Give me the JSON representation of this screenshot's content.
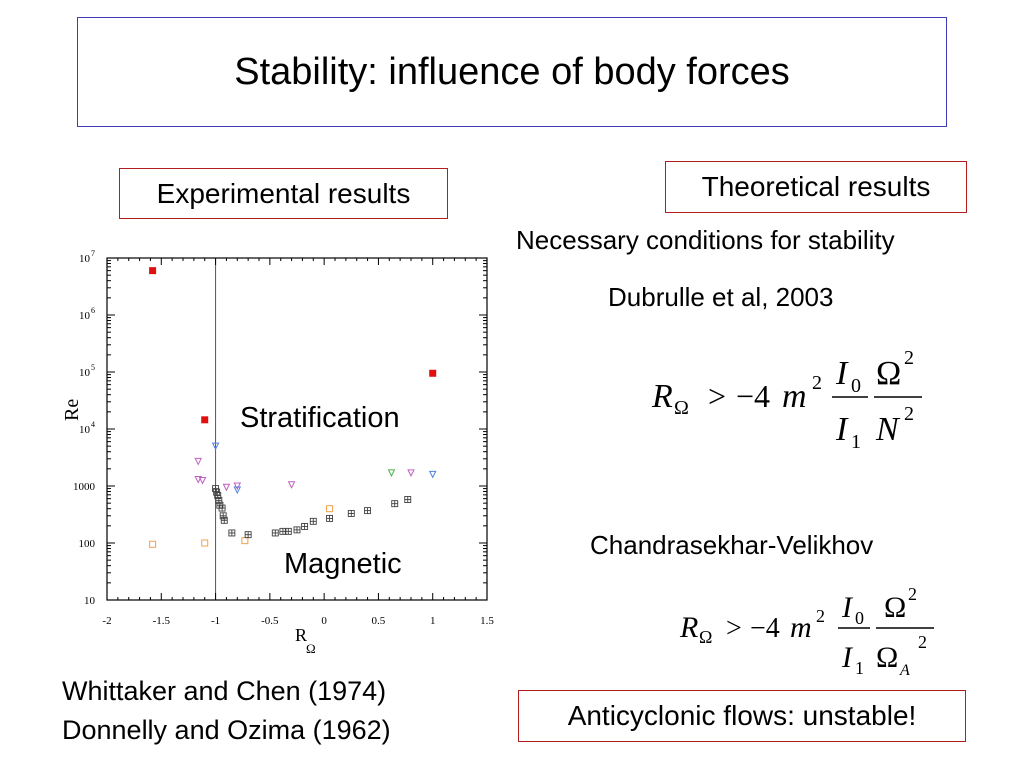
{
  "slide": {
    "title": "Stability: influence of body forces",
    "experimental_label": "Experimental results",
    "theoretical_label": "Theoretical results",
    "necessary_conditions": "Necessary conditions for stability",
    "dubrulle": "Dubrulle et al, 2003",
    "chandrasekhar": "Chandrasekhar-Velikhov",
    "anticyclonic": "Anticyclonic flows: unstable!",
    "references": [
      "Whittaker and Chen (1974)",
      "Donnelly and Ozima (1962)"
    ],
    "formula1": {
      "lhs_sym": "R",
      "lhs_sub": "Ω",
      "rel": ">",
      "coef": "−4",
      "m": "m",
      "m_exp": "2",
      "num1_sym": "I",
      "num1_sub": "0",
      "den1_sym": "I",
      "den1_sub": "1",
      "num2_sym": "Ω",
      "num2_exp": "2",
      "den2_sym": "N",
      "den2_exp": "2"
    },
    "formula2": {
      "lhs_sym": "R",
      "lhs_sub": "Ω",
      "rel": ">",
      "coef": "−4",
      "m": "m",
      "m_exp": "2",
      "num1_sym": "I",
      "num1_sub": "0",
      "den1_sym": "I",
      "den1_sub": "1",
      "num2_sym": "Ω",
      "num2_exp": "2",
      "den2_sym": "Ω",
      "den2_sub": "A",
      "den2_exp": "2"
    }
  },
  "chart_data": {
    "type": "scatter",
    "xlabel": "R",
    "xlabel_sub": "Ω",
    "ylabel": "Re",
    "xlim": [
      -2,
      1.5
    ],
    "ylim_log10": [
      1,
      7
    ],
    "y_scale": "log",
    "x_ticks": [
      "-2",
      "-1.5",
      "-1",
      "-0.5",
      "0",
      "0.5",
      "1",
      "1.5"
    ],
    "y_ticks": [
      {
        "base": "10",
        "exp": "7"
      },
      {
        "base": "10",
        "exp": "6"
      },
      {
        "base": "10",
        "exp": "5"
      },
      {
        "base": "10",
        "exp": "4"
      },
      {
        "base": "1000",
        "exp": ""
      },
      {
        "base": "100",
        "exp": ""
      },
      {
        "base": "10",
        "exp": ""
      }
    ],
    "vertical_line_x": -1,
    "annotations": [
      "Stratification",
      "Magnetic"
    ],
    "series": [
      {
        "marker": "filled-square",
        "color": "#e01010",
        "points": [
          [
            -1.58,
            6000000
          ],
          [
            -1.1,
            14500
          ],
          [
            1.0,
            95000
          ]
        ]
      },
      {
        "marker": "open-square",
        "color": "#f0a050",
        "points": [
          [
            -1.58,
            95
          ],
          [
            -1.1,
            100
          ],
          [
            -0.73,
            110
          ],
          [
            0.05,
            400
          ]
        ]
      },
      {
        "marker": "triangle-down",
        "color": "#c060c0",
        "points": [
          [
            -1.16,
            2700
          ],
          [
            -1.16,
            1300
          ],
          [
            -1.12,
            1250
          ],
          [
            -0.9,
            950
          ],
          [
            -0.8,
            1000
          ],
          [
            -0.3,
            1050
          ],
          [
            0.8,
            1700
          ]
        ]
      },
      {
        "marker": "triangle-down",
        "color": "#5080e0",
        "points": [
          [
            -1.0,
            5000
          ],
          [
            -0.8,
            850
          ],
          [
            1.0,
            1600
          ]
        ]
      },
      {
        "marker": "triangle-down",
        "color": "#50b050",
        "points": [
          [
            0.62,
            1700
          ]
        ]
      },
      {
        "marker": "boxed-plus",
        "color": "#404040",
        "points": [
          [
            -1.0,
            900
          ],
          [
            -0.99,
            780
          ],
          [
            -0.98,
            680
          ],
          [
            -0.97,
            560
          ],
          [
            -0.96,
            460
          ],
          [
            -0.94,
            410
          ],
          [
            -0.93,
            300
          ],
          [
            -0.92,
            250
          ],
          [
            -0.85,
            150
          ],
          [
            -0.7,
            140
          ],
          [
            -0.45,
            150
          ],
          [
            -0.38,
            160
          ],
          [
            -0.33,
            160
          ],
          [
            -0.25,
            170
          ],
          [
            -0.18,
            195
          ],
          [
            -0.1,
            240
          ],
          [
            0.05,
            270
          ],
          [
            0.25,
            330
          ],
          [
            0.4,
            370
          ],
          [
            0.65,
            490
          ],
          [
            0.77,
            580
          ]
        ]
      }
    ]
  }
}
